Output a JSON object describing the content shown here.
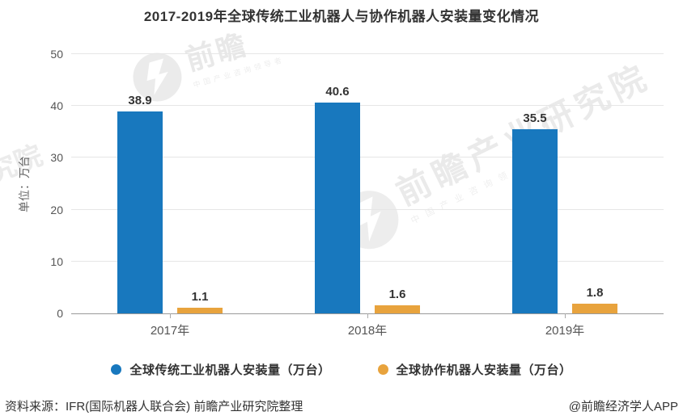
{
  "title": "2017-2019年全球传统工业机器人与协作机器人安装量变化情况",
  "chart_data": {
    "type": "bar",
    "categories": [
      "2017年",
      "2018年",
      "2019年"
    ],
    "series": [
      {
        "name": "全球传统工业机器人安装量（万台）",
        "color": "#1878BE",
        "values": [
          38.9,
          40.6,
          35.5
        ]
      },
      {
        "name": "全球协作机器人安装量（万台）",
        "color": "#E8A33D",
        "values": [
          1.1,
          1.6,
          1.8
        ]
      }
    ],
    "title": "2017-2019年全球传统工业机器人与协作机器人安装量变化情况",
    "xlabel": "",
    "ylabel": "单位：万台",
    "ylim": [
      0,
      50
    ],
    "yticks": [
      0,
      10,
      20,
      30,
      40,
      50
    ],
    "grid": true,
    "legend_position": "bottom",
    "value_labels": true
  },
  "footer": {
    "source": "资料来源：IFR(国际机器人联合会) 前瞻产业研究院整理",
    "credit": "@前瞻经济学人APP"
  },
  "watermarks": {
    "brand": "前瞻",
    "brand_sub": "中国产业咨询领导者",
    "center": "前瞻产业研究院",
    "center_sub": "中国产业咨询领导者",
    "left_fragment": "究院"
  },
  "colors": {
    "primary_series": "#1878BE",
    "secondary_series": "#E8A33D",
    "gridline": "#e6e6e6",
    "axis": "#9a9a9a",
    "text_dark": "#333333",
    "text_axis": "#555555"
  }
}
